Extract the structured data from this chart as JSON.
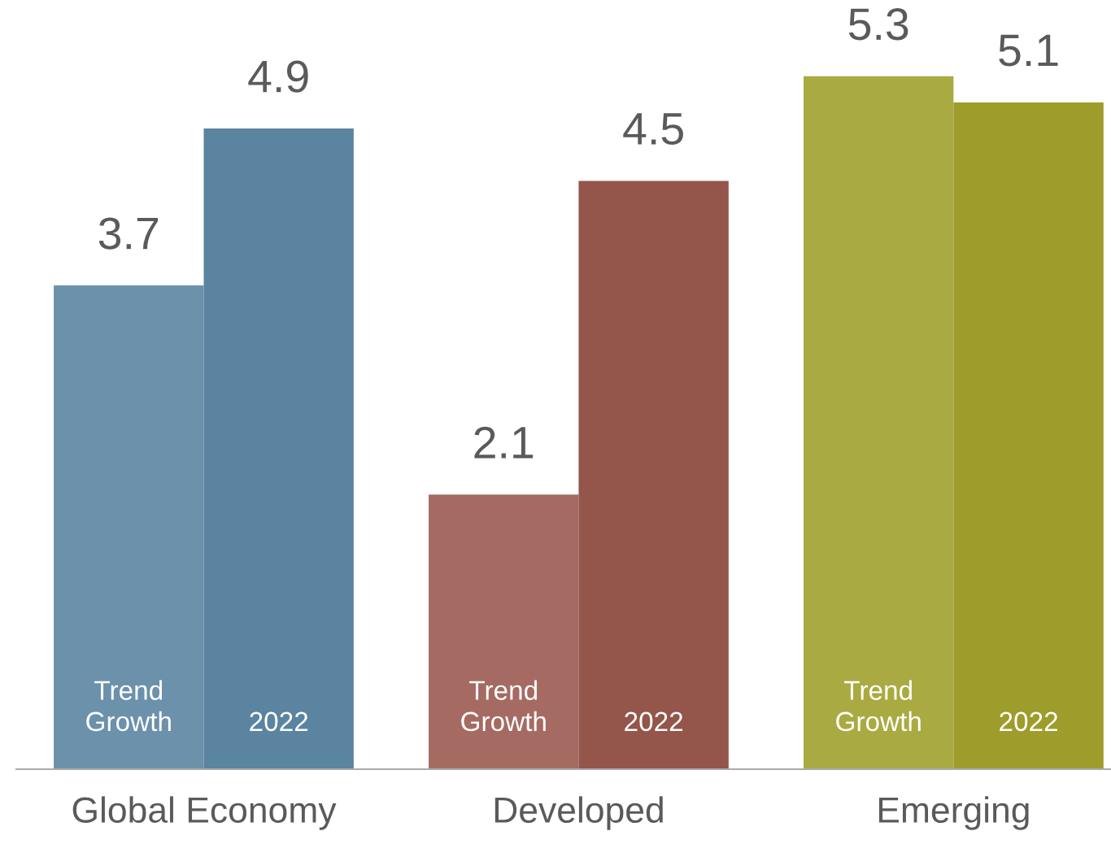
{
  "chart_data": {
    "type": "bar",
    "categories": [
      "Global Economy",
      "Developed",
      "Emerging"
    ],
    "series": [
      {
        "name": "Trend Growth",
        "colors": [
          "#6b91ab",
          "#a56b62",
          "#aaaa42"
        ],
        "values": [
          3.7,
          2.1,
          5.3
        ]
      },
      {
        "name": "2022",
        "colors": [
          "#5a84a0",
          "#94554b",
          "#9e9c2a"
        ],
        "values": [
          4.9,
          4.5,
          5.1
        ]
      }
    ],
    "data_labels": true,
    "legend": false,
    "grid": false,
    "tick_labels": "x"
  }
}
